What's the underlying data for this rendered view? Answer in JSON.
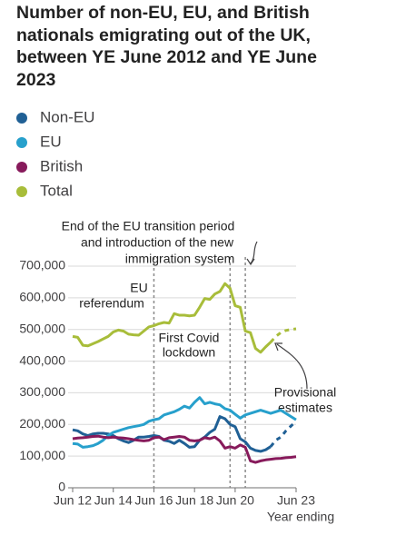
{
  "chart_data": {
    "type": "line",
    "title": "Number of non-EU, EU, and British nationals emigrating out of the UK, between YE June 2012 and YE June 2023",
    "x_label": "Year ending",
    "x": [
      2012.5,
      2012.75,
      2013,
      2013.25,
      2013.5,
      2013.75,
      2014,
      2014.25,
      2014.5,
      2014.75,
      2015,
      2015.25,
      2015.5,
      2015.75,
      2016,
      2016.25,
      2016.5,
      2016.75,
      2017,
      2017.25,
      2017.5,
      2017.75,
      2018,
      2018.25,
      2018.5,
      2018.75,
      2019,
      2019.25,
      2019.5,
      2019.75,
      2020,
      2020.25,
      2020.5,
      2020.75,
      2021,
      2021.25,
      2021.5,
      2021.75,
      2022,
      2022.25,
      2022.5,
      2022.75,
      2023,
      2023.25,
      2023.5
    ],
    "xlim": [
      2012.5,
      2023.5
    ],
    "xticks": [
      {
        "value": 2012.5,
        "label": "Jun 12"
      },
      {
        "value": 2014.5,
        "label": "Jun 14"
      },
      {
        "value": 2016.5,
        "label": "Jun 16"
      },
      {
        "value": 2018.5,
        "label": "Jun 18"
      },
      {
        "value": 2020.5,
        "label": "Jun 20"
      },
      {
        "value": 2023.5,
        "label": "Jun 23"
      }
    ],
    "ylim": [
      0,
      700000
    ],
    "yticks": [
      0,
      {
        "value": 100000,
        "label": "100,000"
      },
      {
        "value": 200000,
        "label": "200,000"
      },
      {
        "value": 300000,
        "label": "300,000"
      },
      {
        "value": 400000,
        "label": "400,000"
      },
      {
        "value": 500000,
        "label": "500,000"
      },
      {
        "value": 600000,
        "label": "600,000"
      },
      {
        "value": 700000,
        "label": "700,000"
      }
    ],
    "grid": true,
    "series": [
      {
        "name": "Non-EU",
        "color": "#206095",
        "dashed_from": 2022.25,
        "values": [
          183000,
          180000,
          170000,
          165000,
          170000,
          172000,
          172000,
          170000,
          165000,
          155000,
          148000,
          143000,
          150000,
          160000,
          160000,
          162000,
          165000,
          162000,
          150000,
          147000,
          140000,
          150000,
          140000,
          128000,
          130000,
          150000,
          160000,
          175000,
          185000,
          225000,
          218000,
          200000,
          193000,
          155000,
          145000,
          125000,
          118000,
          115000,
          120000,
          130000,
          150000,
          160000,
          180000,
          195000,
          210000
        ]
      },
      {
        "name": "EU",
        "color": "#27a0cc",
        "values": [
          140000,
          138000,
          128000,
          130000,
          133000,
          140000,
          150000,
          165000,
          175000,
          180000,
          185000,
          190000,
          193000,
          196000,
          200000,
          210000,
          215000,
          218000,
          230000,
          235000,
          240000,
          248000,
          258000,
          252000,
          270000,
          285000,
          265000,
          270000,
          265000,
          262000,
          250000,
          245000,
          232000,
          220000,
          230000,
          235000,
          240000,
          245000,
          240000,
          235000,
          240000,
          245000,
          235000,
          225000,
          215000
        ]
      },
      {
        "name": "British",
        "color": "#871a5b",
        "values": [
          155000,
          157000,
          158000,
          160000,
          162000,
          163000,
          160000,
          158000,
          160000,
          158000,
          157000,
          155000,
          152000,
          150000,
          148000,
          150000,
          158000,
          160000,
          152000,
          158000,
          160000,
          162000,
          160000,
          150000,
          148000,
          150000,
          158000,
          155000,
          160000,
          148000,
          125000,
          130000,
          125000,
          135000,
          128000,
          85000,
          80000,
          85000,
          88000,
          90000,
          92000,
          93000,
          95000,
          96000,
          98000
        ]
      },
      {
        "name": "Total",
        "color": "#a8bd3a",
        "dashed_from": 2022.25,
        "values": [
          478000,
          475000,
          450000,
          448000,
          455000,
          462000,
          470000,
          478000,
          492000,
          498000,
          495000,
          485000,
          483000,
          482000,
          495000,
          508000,
          512000,
          518000,
          522000,
          520000,
          550000,
          545000,
          545000,
          543000,
          545000,
          570000,
          598000,
          595000,
          612000,
          620000,
          645000,
          630000,
          575000,
          570000,
          495000,
          490000,
          440000,
          428000,
          445000,
          460000,
          478000,
          490000,
          497000,
          500000,
          502000
        ]
      }
    ],
    "reference_lines": [
      {
        "x": 2016.5,
        "label": [
          "EU",
          "referendum"
        ]
      },
      {
        "x": 2020.25,
        "label": [
          "First Covid",
          "lockdown"
        ]
      },
      {
        "x": 2021.0,
        "label": [
          "End of the EU transition period",
          "and introduction of the new",
          "immigration system"
        ]
      }
    ],
    "annotation": [
      "Provisional",
      "estimates"
    ]
  }
}
